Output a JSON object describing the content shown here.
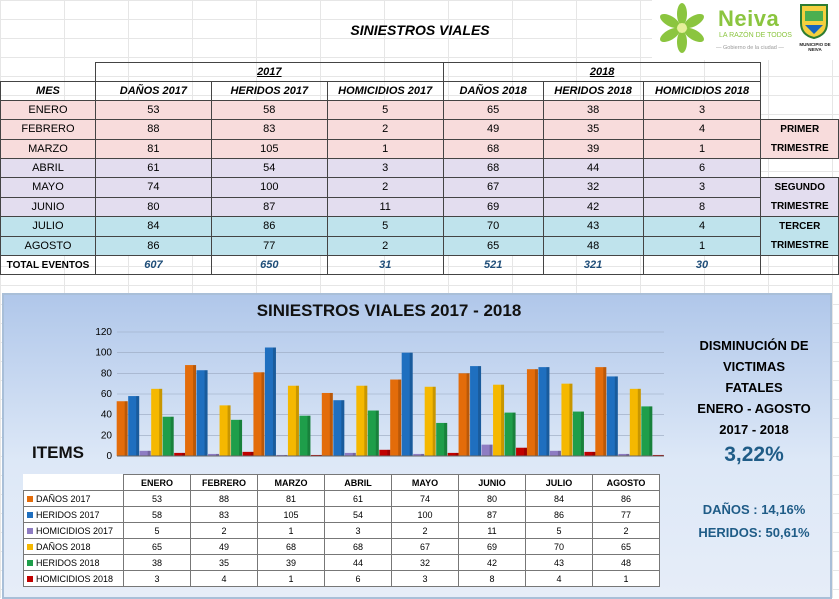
{
  "header": {
    "title": "SINIESTROS VIALES",
    "logo_name": "Neiva",
    "logo_slogan": "LA RAZÓN DE TODOS",
    "logo_sub": "— Gobierno de la ciudad —",
    "logo_muni": "MUNICIPIO DE NEIVA"
  },
  "table": {
    "year1": "2017",
    "year2": "2018",
    "col_mes": "MES",
    "cols": [
      "DAÑOS 2017",
      "HERIDOS 2017",
      "HOMICIDIOS 2017",
      "DAÑOS 2018",
      "HERIDOS 2018",
      "HOMICIDIOS 2018"
    ],
    "rows": [
      {
        "mes": "ENERO",
        "v": [
          "53",
          "58",
          "5",
          "65",
          "38",
          "3"
        ]
      },
      {
        "mes": "FEBRERO",
        "v": [
          "88",
          "83",
          "2",
          "49",
          "35",
          "4"
        ]
      },
      {
        "mes": "MARZO",
        "v": [
          "81",
          "105",
          "1",
          "68",
          "39",
          "1"
        ]
      },
      {
        "mes": "ABRIL",
        "v": [
          "61",
          "54",
          "3",
          "68",
          "44",
          "6"
        ]
      },
      {
        "mes": "MAYO",
        "v": [
          "74",
          "100",
          "2",
          "67",
          "32",
          "3"
        ]
      },
      {
        "mes": "JUNIO",
        "v": [
          "80",
          "87",
          "11",
          "69",
          "42",
          "8"
        ]
      },
      {
        "mes": "JULIO",
        "v": [
          "84",
          "86",
          "5",
          "70",
          "43",
          "4"
        ]
      },
      {
        "mes": "AGOSTO",
        "v": [
          "86",
          "77",
          "2",
          "65",
          "48",
          "1"
        ]
      }
    ],
    "total_label": "TOTAL EVENTOS",
    "totals": [
      "607",
      "650",
      "31",
      "521",
      "321",
      "30"
    ],
    "trimestres": [
      {
        "l1": "PRIMER",
        "l2": "TRIMESTRE"
      },
      {
        "l1": "SEGUNDO",
        "l2": "TRIMESTRE"
      },
      {
        "l1": "TERCER",
        "l2": "TRIMESTRE"
      }
    ]
  },
  "side": {
    "l1": "DISMINUCIÓN DE",
    "l2": "VICTIMAS",
    "l3": "FATALES",
    "l4": "ENERO - AGOSTO",
    "l5": "2017 - 2018",
    "pct": "3,22%",
    "danos": "DAÑOS : 14,16%",
    "heridos": "HERIDOS: 50,61%"
  },
  "items_label": "ITEMS",
  "chart_data": {
    "type": "bar",
    "title": "SINIESTROS VIALES 2017 - 2018",
    "categories": [
      "ENERO",
      "FEBRERO",
      "MARZO",
      "ABRIL",
      "MAYO",
      "JUNIO",
      "JULIO",
      "AGOSTO"
    ],
    "ylim": [
      0,
      120
    ],
    "yticks": [
      "0",
      "20",
      "40",
      "60",
      "80",
      "100",
      "120"
    ],
    "legend": "data table below chart",
    "series": [
      {
        "name": "DAÑOS 2017",
        "color": "#e36c0a",
        "values": [
          53,
          88,
          81,
          61,
          74,
          80,
          84,
          86
        ]
      },
      {
        "name": "HERIDOS 2017",
        "color": "#1f6fbf",
        "values": [
          58,
          83,
          105,
          54,
          100,
          87,
          86,
          77
        ]
      },
      {
        "name": "HOMICIDIOS 2017",
        "color": "#8e7cc3",
        "values": [
          5,
          2,
          1,
          3,
          2,
          11,
          5,
          2
        ]
      },
      {
        "name": "DAÑOS 2018",
        "color": "#f5b800",
        "values": [
          65,
          49,
          68,
          68,
          67,
          69,
          70,
          65
        ]
      },
      {
        "name": "HERIDOS 2018",
        "color": "#1e9e4a",
        "values": [
          38,
          35,
          39,
          44,
          32,
          42,
          43,
          48
        ]
      },
      {
        "name": "HOMICIDIOS 2018",
        "color": "#c00000",
        "values": [
          3,
          4,
          1,
          6,
          3,
          8,
          4,
          1
        ]
      }
    ]
  }
}
